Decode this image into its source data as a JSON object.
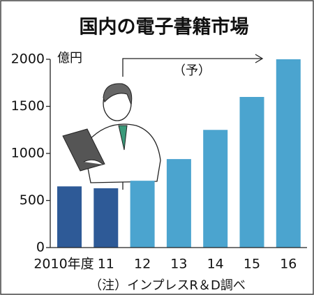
{
  "chart_data": {
    "type": "bar",
    "title": "国内の電子書籍市場",
    "unit": "億円",
    "annotation": "（予）",
    "note": "（注）インプレスR＆D調べ",
    "categories": [
      "2010年度",
      "11",
      "12",
      "13",
      "14",
      "15",
      "16"
    ],
    "values": [
      650,
      630,
      710,
      940,
      1250,
      1600,
      2000
    ],
    "colors": [
      "#2e5a97",
      "#2e5a97",
      "#4ba4cf",
      "#4ba4cf",
      "#4ba4cf",
      "#4ba4cf",
      "#4ba4cf"
    ],
    "ylim": [
      0,
      2000
    ],
    "yticks": [
      0,
      500,
      1000,
      1500,
      2000
    ],
    "grid": false
  }
}
